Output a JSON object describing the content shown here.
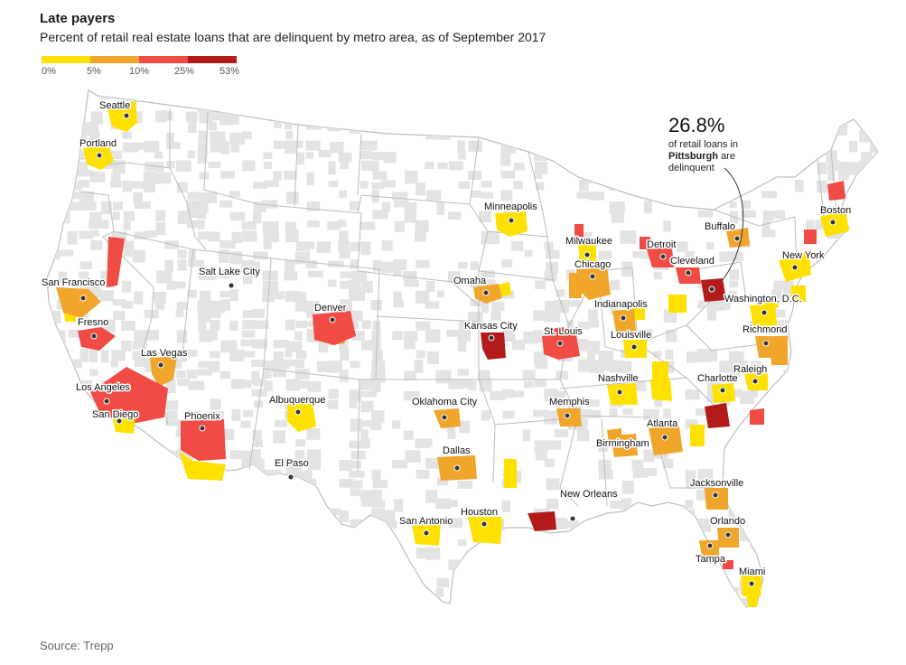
{
  "header": {
    "title": "Late payers",
    "subtitle": "Percent of retail real estate loans that are delinquent by metro area, as of September 2017"
  },
  "legend": {
    "stops": [
      {
        "label": "0%",
        "value": 0
      },
      {
        "label": "5%",
        "value": 5
      },
      {
        "label": "10%",
        "value": 10
      },
      {
        "label": "25%",
        "value": 25
      },
      {
        "label": "53%",
        "value": 53
      }
    ],
    "colors": [
      "#ffe100",
      "#f0a52b",
      "#f04b44",
      "#b31b1b"
    ]
  },
  "colors": {
    "state_border": "#bdbdbd",
    "county_gray": "#e3e3e3",
    "land": "#ffffff"
  },
  "callout": {
    "value": "26.8%",
    "line1": "of retail loans in",
    "city": "Pittsburgh",
    "line2_suffix": " are",
    "line3": "delinquent"
  },
  "cities": [
    {
      "name": "Seattle",
      "level": 1
    },
    {
      "name": "Portland",
      "level": 1
    },
    {
      "name": "San Francisco",
      "level": 2
    },
    {
      "name": "Fresno",
      "level": 3
    },
    {
      "name": "Las Vegas",
      "level": 2
    },
    {
      "name": "Los Angeles",
      "level": 3
    },
    {
      "name": "San Diego",
      "level": 1
    },
    {
      "name": "Phoenix",
      "level": 3
    },
    {
      "name": "Salt Lake City",
      "level": 0
    },
    {
      "name": "Denver",
      "level": 3
    },
    {
      "name": "Albuquerque",
      "level": 1
    },
    {
      "name": "El Paso",
      "level": 0
    },
    {
      "name": "Omaha",
      "level": 2
    },
    {
      "name": "Kansas City",
      "level": 4
    },
    {
      "name": "Oklahoma City",
      "level": 2
    },
    {
      "name": "Dallas",
      "level": 2
    },
    {
      "name": "San Antonio",
      "level": 1
    },
    {
      "name": "Houston",
      "level": 1
    },
    {
      "name": "Minneapolis",
      "level": 1
    },
    {
      "name": "Milwaukee",
      "level": 1
    },
    {
      "name": "Chicago",
      "level": 2
    },
    {
      "name": "St. Louis",
      "level": 3
    },
    {
      "name": "Indianapolis",
      "level": 2
    },
    {
      "name": "Louisville",
      "level": 1
    },
    {
      "name": "Nashville",
      "level": 1
    },
    {
      "name": "Memphis",
      "level": 2
    },
    {
      "name": "Birmingham",
      "level": 2
    },
    {
      "name": "Atlanta",
      "level": 2
    },
    {
      "name": "New Orleans",
      "level": 4
    },
    {
      "name": "Detroit",
      "level": 3
    },
    {
      "name": "Cleveland",
      "level": 3
    },
    {
      "name": "Buffalo",
      "level": 2
    },
    {
      "name": "Pittsburgh",
      "level": 4
    },
    {
      "name": "Boston",
      "level": 1
    },
    {
      "name": "New York",
      "level": 1
    },
    {
      "name": "Washington, D.C.",
      "level": 1
    },
    {
      "name": "Richmond",
      "level": 2
    },
    {
      "name": "Raleigh",
      "level": 1
    },
    {
      "name": "Charlotte",
      "level": 1
    },
    {
      "name": "Jacksonville",
      "level": 2
    },
    {
      "name": "Orlando",
      "level": 2
    },
    {
      "name": "Tampa",
      "level": 2
    },
    {
      "name": "Miami",
      "level": 1
    }
  ],
  "source": "Source: Trepp"
}
